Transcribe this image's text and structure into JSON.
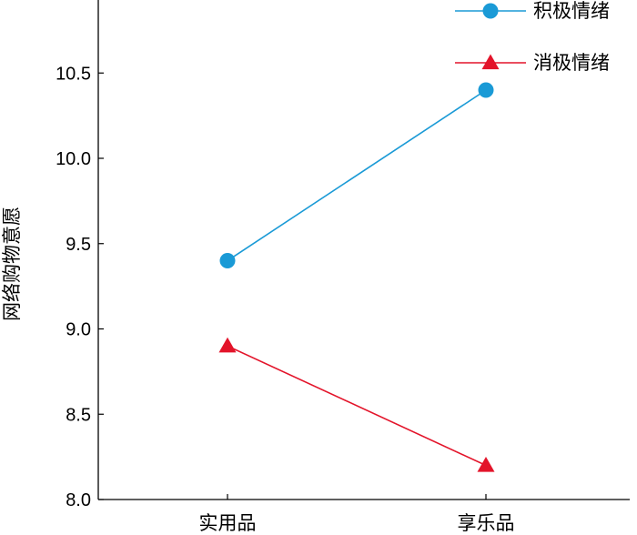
{
  "chart_data": {
    "type": "line",
    "title": "",
    "xlabel": "",
    "ylabel": "网络购物意愿",
    "categories": [
      "实用品",
      "享乐品"
    ],
    "ylim": [
      8.0,
      11.0
    ],
    "yticks": [
      "8.0",
      "8.5",
      "9.0",
      "9.5",
      "10.0",
      "10.5"
    ],
    "legend_position": "top-right",
    "grid": false,
    "series": [
      {
        "name": "积极情绪",
        "values": [
          9.4,
          10.4
        ],
        "color": "#1a9ad6",
        "marker": "circle"
      },
      {
        "name": "消极情绪",
        "values": [
          8.9,
          8.2
        ],
        "color": "#e3142a",
        "marker": "triangle"
      }
    ]
  }
}
